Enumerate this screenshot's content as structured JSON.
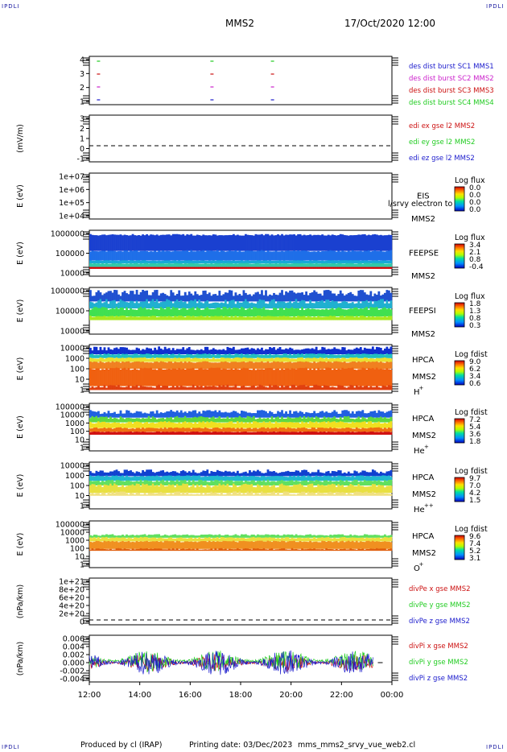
{
  "header": {
    "corner_label": "IPDLI",
    "spacecraft": "MMS2",
    "datetime": "17/Oct/2020 12:00"
  },
  "footer": {
    "produced_by": "Produced by cl (IRAP)",
    "printing_date": "Printing date: 03/Dec/2023",
    "filename": "mms_mms2_srvy_vue_web2.cl"
  },
  "colors": {
    "mms1": "#1a1acc",
    "mms2": "#cc22cc",
    "mms3": "#cc1111",
    "mms4": "#22cc22",
    "x": "#cc1111",
    "y": "#22cc22",
    "z": "#1a1acc"
  },
  "chart_data": [
    {
      "type": "scatter",
      "panel": "burst",
      "ylim": [
        0.5,
        4.5
      ],
      "yticks": [
        "1",
        "2",
        "3",
        "4"
      ],
      "legend": [
        {
          "label": "des dist burst SC1 MMS1",
          "color": "#1a1acc"
        },
        {
          "label": "des dist burst SC2 MMS2",
          "color": "#cc22cc"
        },
        {
          "label": "des dist burst SC3 MMS3",
          "color": "#cc1111"
        },
        {
          "label": "des dist burst SC4 MMS4",
          "color": "#22cc22"
        }
      ],
      "marks_hours": [
        12.3,
        16.8,
        19.2
      ]
    },
    {
      "type": "line",
      "panel": "edi",
      "ylabel": "(mV/m)",
      "yticks": [
        "-1",
        "0",
        "1",
        "2",
        "3"
      ],
      "legend": [
        {
          "label": "edi ex gse l2 MMS2",
          "color": "#cc1111"
        },
        {
          "label": "edi ey gse l2 MMS2",
          "color": "#22cc22"
        },
        {
          "label": "edi ez gse l2 MMS2",
          "color": "#1a1acc"
        }
      ]
    },
    {
      "type": "heatmap",
      "panel": "eis",
      "ylabel": "E (eV)",
      "yticks": [
        "1e+04",
        "1e+05",
        "1e+06",
        "1e+07"
      ],
      "labels": [
        "EIS",
        "MMS2"
      ],
      "overlay_text": "l/srvy electron to",
      "colorbar": {
        "title": "Log flux",
        "ticks": [
          "0.0",
          "0.0",
          "0.0",
          "0.0"
        ]
      }
    },
    {
      "type": "heatmap",
      "panel": "feepse",
      "ylabel": "E (eV)",
      "yticks": [
        "10000",
        "100000",
        "1000000"
      ],
      "labels": [
        "FEEPSE",
        "MMS2"
      ],
      "colorbar": {
        "title": "Log flux",
        "ticks": [
          "3.4",
          "2.1",
          "0.8",
          "-0.4"
        ]
      }
    },
    {
      "type": "heatmap",
      "panel": "feepsi",
      "ylabel": "E (eV)",
      "yticks": [
        "10000",
        "100000",
        "1000000"
      ],
      "labels": [
        "FEEPSI",
        "MMS2"
      ],
      "colorbar": {
        "title": "Log flux",
        "ticks": [
          "1.8",
          "1.3",
          "0.8",
          "0.3"
        ]
      }
    },
    {
      "type": "heatmap",
      "panel": "hpca-h",
      "ylabel": "E (eV)",
      "yticks": [
        "1",
        "10",
        "100",
        "1000",
        "10000"
      ],
      "labels": [
        "HPCA",
        "MMS2",
        "H",
        "+"
      ],
      "colorbar": {
        "title": "Log fdist",
        "ticks": [
          "9.0",
          "6.2",
          "3.4",
          "0.6"
        ]
      }
    },
    {
      "type": "heatmap",
      "panel": "hpca-he",
      "ylabel": "E (eV)",
      "yticks": [
        "1",
        "10",
        "100",
        "1000",
        "10000",
        "100000"
      ],
      "labels": [
        "HPCA",
        "MMS2",
        "He",
        "+"
      ],
      "colorbar": {
        "title": "Log fdist",
        "ticks": [
          "7.2",
          "5.4",
          "3.6",
          "1.8"
        ]
      }
    },
    {
      "type": "heatmap",
      "panel": "hpca-hepp",
      "ylabel": "E (eV)",
      "yticks": [
        "1",
        "10",
        "100",
        "1000",
        "10000"
      ],
      "labels": [
        "HPCA",
        "MMS2",
        "He",
        "++"
      ],
      "colorbar": {
        "title": "Log fdist",
        "ticks": [
          "9.7",
          "7.0",
          "4.2",
          "1.5"
        ]
      }
    },
    {
      "type": "heatmap",
      "panel": "hpca-o",
      "ylabel": "E (eV)",
      "yticks": [
        "1",
        "10",
        "100",
        "1000",
        "10000",
        "100000"
      ],
      "labels": [
        "HPCA",
        "MMS2",
        "O",
        "+"
      ],
      "colorbar": {
        "title": "Log fdist",
        "ticks": [
          "9.6",
          "7.4",
          "5.2",
          "3.1"
        ]
      }
    },
    {
      "type": "line",
      "panel": "divpe",
      "ylabel": "(nPa/km)",
      "yticks": [
        "0",
        "2e+20",
        "4e+20",
        "6e+20",
        "8e+20",
        "1e+21"
      ],
      "legend": [
        {
          "label": "divPe x gse MMS2",
          "color": "#cc1111"
        },
        {
          "label": "divPe y gse MMS2",
          "color": "#22cc22"
        },
        {
          "label": "divPe z gse MMS2",
          "color": "#1a1acc"
        }
      ]
    },
    {
      "type": "line",
      "panel": "divpi",
      "ylabel": "(nPa/km)",
      "ylim": [
        -0.005,
        0.007
      ],
      "yticks": [
        "-0.004",
        "-0.002",
        "0.000",
        "0.002",
        "0.004",
        "0.006"
      ],
      "legend": [
        {
          "label": "divPi x gse MMS2",
          "color": "#cc1111"
        },
        {
          "label": "divPi y gse MMS2",
          "color": "#22cc22"
        },
        {
          "label": "divPi z gse MMS2",
          "color": "#1a1acc"
        }
      ],
      "x": [
        "12:00",
        "14:00",
        "16:00",
        "18:00",
        "20:00",
        "22:00",
        "00:00"
      ]
    }
  ]
}
